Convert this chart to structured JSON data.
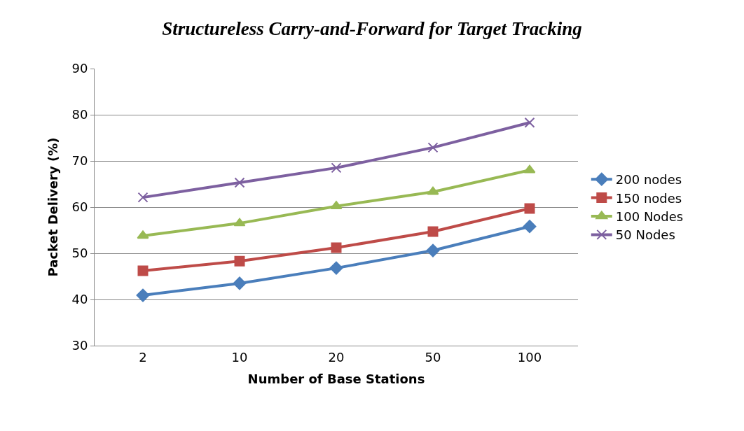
{
  "chart_data": {
    "type": "line",
    "title": "Structureless Carry-and-Forward for Target Tracking",
    "xlabel": "Number of Base Stations",
    "ylabel": "Packet Delivery (%)",
    "categories": [
      "2",
      "10",
      "20",
      "50",
      "100"
    ],
    "series": [
      {
        "name": "200 nodes",
        "color": "#4a7ebb",
        "marker": "diamond",
        "values": [
          40.9,
          43.5,
          46.8,
          50.6,
          55.8
        ]
      },
      {
        "name": "150 nodes",
        "color": "#be4b48",
        "marker": "square",
        "values": [
          46.2,
          48.3,
          51.2,
          54.7,
          59.7
        ]
      },
      {
        "name": "100 Nodes",
        "color": "#98b954",
        "marker": "triangle",
        "values": [
          53.8,
          56.5,
          60.2,
          63.3,
          68.0
        ]
      },
      {
        "name": "50 Nodes",
        "color": "#7d60a0",
        "marker": "cross",
        "values": [
          62.1,
          65.3,
          68.5,
          72.9,
          78.3
        ]
      }
    ],
    "ylim": [
      30,
      90
    ],
    "yticks": [
      30,
      40,
      50,
      60,
      70,
      80,
      90
    ],
    "grid": "y",
    "legend": "right",
    "line_style": "solid"
  }
}
